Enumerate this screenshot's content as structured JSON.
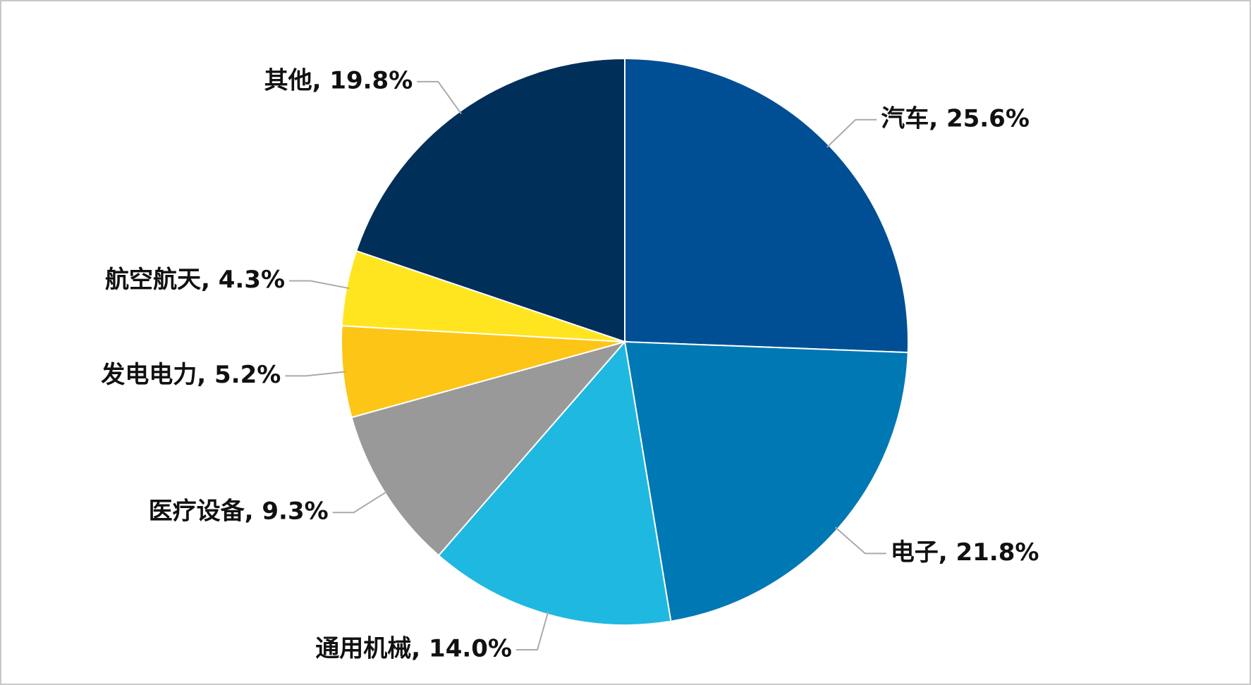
{
  "chart_data": {
    "type": "pie",
    "values": [
      25.6,
      21.8,
      14.0,
      9.3,
      5.2,
      4.3,
      19.8
    ],
    "value_labels": [
      "汽车, 25.6%",
      "电子, 21.8%",
      "通用机械, 14.0%",
      "医疗设备, 9.3%",
      "发电电力, 5.2%",
      "航空航天, 4.3%",
      "其他, 19.8%"
    ],
    "colors": [
      "#004f95",
      "#0078b4",
      "#1fb8e0",
      "#999999",
      "#fdc515",
      "#ffe51f",
      "#002f5a"
    ],
    "start_angle": 0,
    "direction": "clockwise"
  }
}
